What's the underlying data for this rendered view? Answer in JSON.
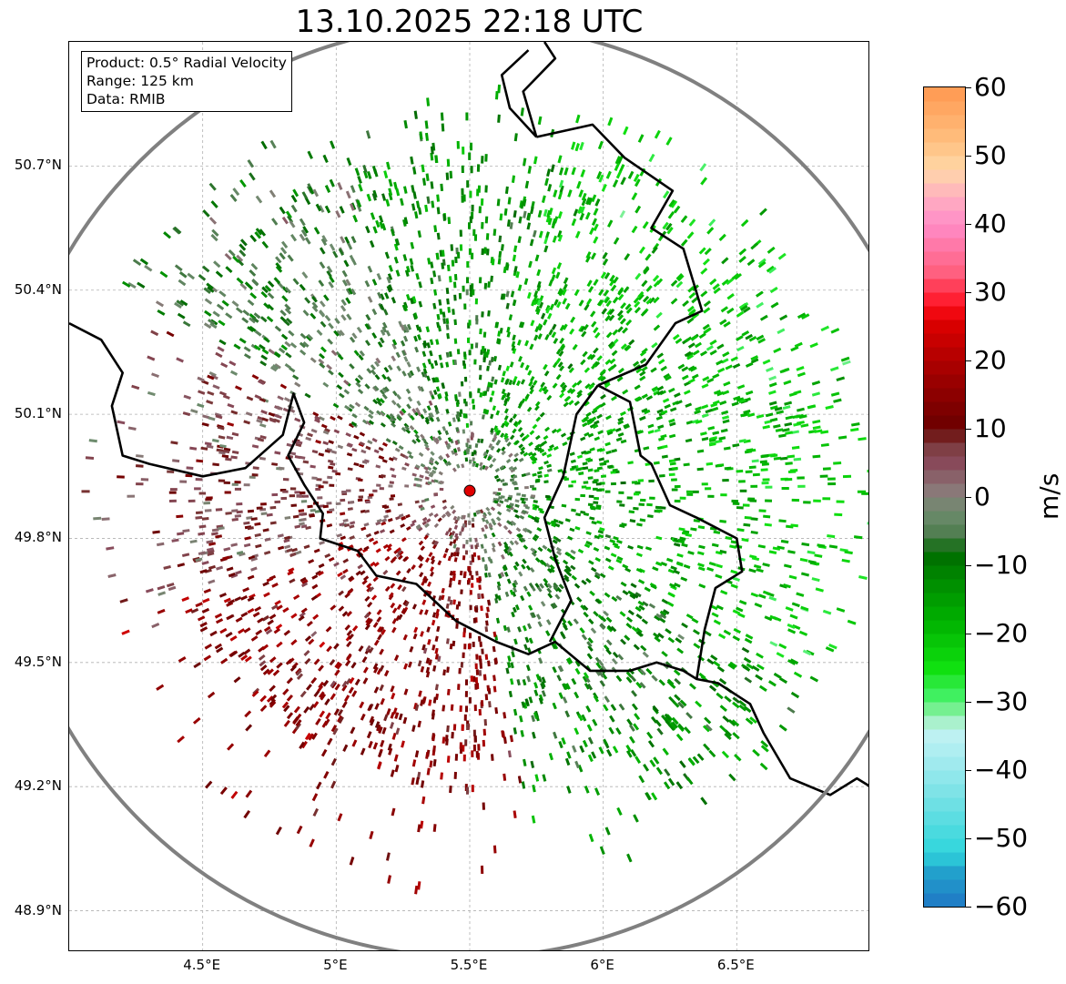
{
  "title": "13.10.2025 22:18 UTC",
  "info_box": {
    "product": "Product: 0.5° Radial Velocity",
    "range": "Range: 125 km",
    "data": "Data: RMIB"
  },
  "map": {
    "lon_min": 4.0,
    "lon_max": 7.0,
    "lat_min": 48.8,
    "lat_max": 51.0,
    "radar_site": {
      "lon": 5.5,
      "lat": 49.915
    },
    "lat_ticks": [
      "50.7°N",
      "50.4°N",
      "50.1°N",
      "49.8°N",
      "49.5°N",
      "49.2°N",
      "48.9°N"
    ],
    "lat_values": [
      50.7,
      50.4,
      50.1,
      49.8,
      49.5,
      49.2,
      48.9
    ],
    "lon_ticks": [
      "4.5°E",
      "5°E",
      "5.5°E",
      "6°E",
      "6.5°E"
    ],
    "lon_values": [
      4.5,
      5.0,
      5.5,
      6.0,
      6.5
    ],
    "colors": {
      "range_ring": "#808080",
      "grid": "#b0b0b0",
      "border": "#000000",
      "radar_dot": "#e00000"
    }
  },
  "colorbar": {
    "unit": "m/s",
    "min": -60,
    "max": 60,
    "ticks": [
      "60",
      "50",
      "40",
      "30",
      "20",
      "10",
      "0",
      "−10",
      "−20",
      "−30",
      "−40",
      "−50",
      "−60"
    ],
    "tick_values": [
      60,
      50,
      40,
      30,
      20,
      10,
      0,
      -10,
      -20,
      -30,
      -40,
      -50,
      -60
    ],
    "stops": [
      {
        "v": -60,
        "c": "#1f77c4"
      },
      {
        "v": -55,
        "c": "#22a0cc"
      },
      {
        "v": -52,
        "c": "#2fd6dc"
      },
      {
        "v": -45,
        "c": "#6ee0e4"
      },
      {
        "v": -38,
        "c": "#a8ecf0"
      },
      {
        "v": -34,
        "c": "#c4f2f2"
      },
      {
        "v": -32,
        "c": "#90f0a8"
      },
      {
        "v": -29,
        "c": "#40f060"
      },
      {
        "v": -25,
        "c": "#10e010"
      },
      {
        "v": -18,
        "c": "#00b000"
      },
      {
        "v": -12,
        "c": "#008a00"
      },
      {
        "v": -8,
        "c": "#006a00"
      },
      {
        "v": -6,
        "c": "#4a7a4a"
      },
      {
        "v": -2,
        "c": "#6f8c6f"
      },
      {
        "v": 1,
        "c": "#8a7878"
      },
      {
        "v": 5,
        "c": "#884a5a"
      },
      {
        "v": 8,
        "c": "#7a3a3a"
      },
      {
        "v": 10,
        "c": "#6a0000"
      },
      {
        "v": 18,
        "c": "#a00000"
      },
      {
        "v": 26,
        "c": "#e00000"
      },
      {
        "v": 28,
        "c": "#ff1020"
      },
      {
        "v": 33,
        "c": "#ff6080"
      },
      {
        "v": 40,
        "c": "#ff8cc8"
      },
      {
        "v": 44,
        "c": "#ffb0c0"
      },
      {
        "v": 48,
        "c": "#ffd8a8"
      },
      {
        "v": 52,
        "c": "#ffc080"
      },
      {
        "v": 60,
        "c": "#ff9850"
      }
    ]
  }
}
